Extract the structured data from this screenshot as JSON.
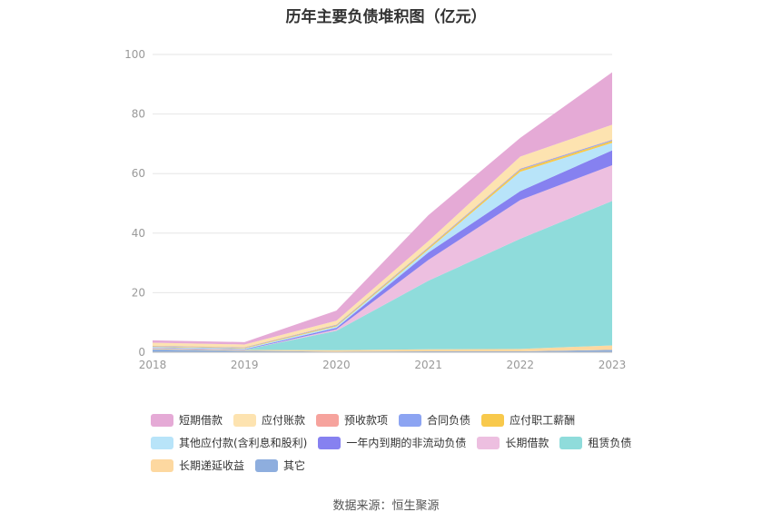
{
  "title": "历年主要负债堆积图（亿元）",
  "source": "数据来源：恒生聚源",
  "chart_data": {
    "type": "area",
    "stacked": true,
    "title": "历年主要负债堆积图（亿元）",
    "x": [
      "2018",
      "2019",
      "2020",
      "2021",
      "2022",
      "2023"
    ],
    "ylim": [
      0,
      100
    ],
    "yticks": [
      0,
      20,
      40,
      60,
      80,
      100
    ],
    "grid": true,
    "legend_position": "bottom",
    "series": [
      {
        "name": "其它",
        "color": "#8eaede",
        "values": [
          1.0,
          0.5,
          0.2,
          0.3,
          0.3,
          0.8
        ]
      },
      {
        "name": "长期递延收益",
        "color": "#fdd8a0",
        "values": [
          0.3,
          0.3,
          0.5,
          0.7,
          0.8,
          1.5
        ]
      },
      {
        "name": "租赁负债",
        "color": "#8fdcdb",
        "values": [
          0.0,
          0.0,
          6.5,
          23.0,
          37.0,
          48.5
        ]
      },
      {
        "name": "长期借款",
        "color": "#edbfe0",
        "values": [
          0.0,
          0.0,
          0.5,
          7.0,
          13.0,
          12.0
        ]
      },
      {
        "name": "一年内到期的非流动负债",
        "color": "#8681f0",
        "values": [
          0.2,
          0.2,
          0.5,
          2.5,
          3.0,
          5.0
        ]
      },
      {
        "name": "其他应付款(含利息和股利)",
        "color": "#b8e4f9",
        "values": [
          0.3,
          0.3,
          0.5,
          1.0,
          6.5,
          2.5
        ]
      },
      {
        "name": "应付职工薪酬",
        "color": "#f8c94c",
        "values": [
          0.2,
          0.2,
          0.3,
          0.5,
          0.7,
          0.7
        ]
      },
      {
        "name": "合同负债",
        "color": "#8ca4f2",
        "values": [
          0.1,
          0.1,
          0.2,
          0.2,
          0.3,
          0.3
        ]
      },
      {
        "name": "预收款项",
        "color": "#f6a39d",
        "values": [
          0.1,
          0.1,
          0.1,
          0.1,
          0.1,
          0.1
        ]
      },
      {
        "name": "应付账款",
        "color": "#fde3b0",
        "values": [
          1.0,
          0.9,
          1.3,
          2.0,
          4.0,
          5.0
        ]
      },
      {
        "name": "短期借款",
        "color": "#e5aad6",
        "values": [
          0.8,
          0.8,
          3.4,
          8.7,
          6.3,
          17.6
        ]
      }
    ]
  },
  "legend_layout": [
    [
      "短期借款",
      "应付账款",
      "预收款项",
      "合同负债",
      "应付职工薪酬"
    ],
    [
      "其他应付款(含利息和股利)",
      "一年内到期的非流动负债",
      "长期借款",
      "租赁负债"
    ],
    [
      "长期递延收益",
      "其它"
    ]
  ]
}
